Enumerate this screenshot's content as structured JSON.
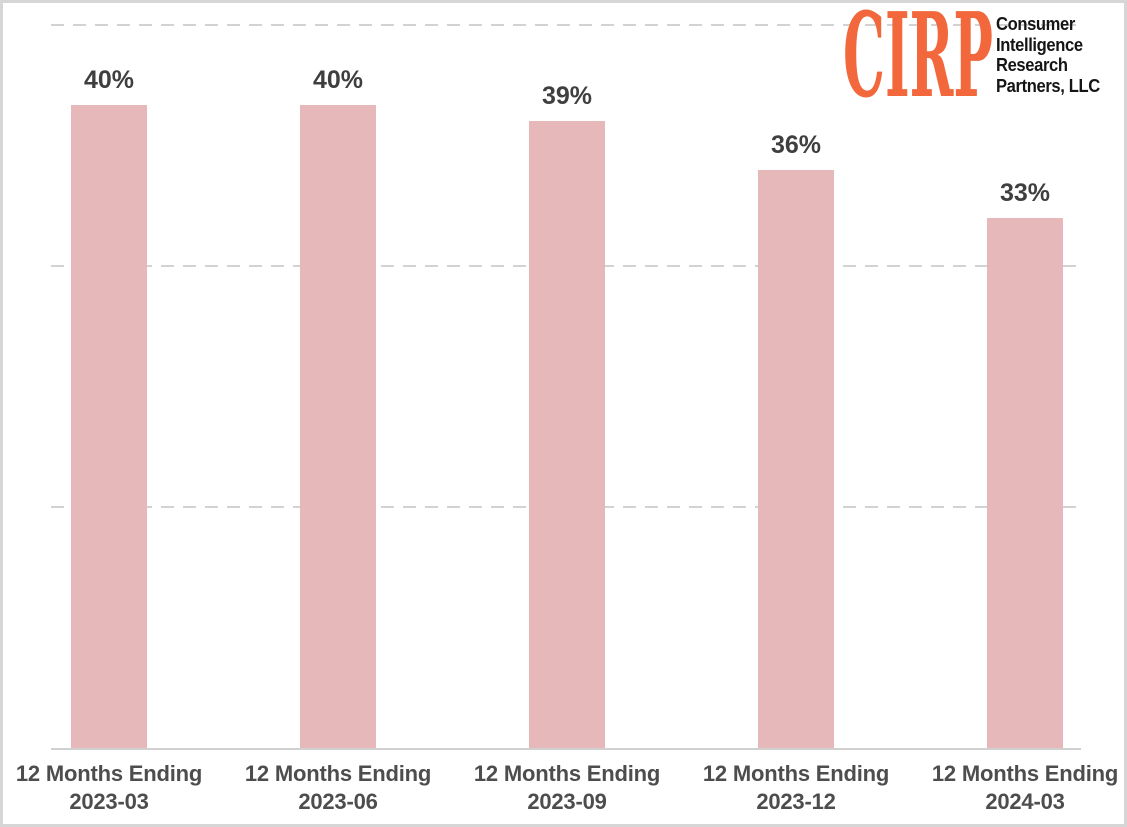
{
  "chart_data": {
    "type": "bar",
    "title": "",
    "xlabel": "",
    "ylabel": "",
    "categories": [
      "12 Months Ending 2023-03",
      "12 Months Ending 2023-06",
      "12 Months Ending 2023-09",
      "12 Months Ending 2023-12",
      "12 Months Ending 2024-03"
    ],
    "category_lines": [
      [
        "12 Months Ending",
        "2023-03"
      ],
      [
        "12 Months Ending",
        "2023-06"
      ],
      [
        "12 Months Ending",
        "2023-09"
      ],
      [
        "12 Months Ending",
        "2023-12"
      ],
      [
        "12 Months Ending",
        "2024-03"
      ]
    ],
    "values": [
      40,
      40,
      39,
      36,
      33
    ],
    "data_labels": [
      "40%",
      "40%",
      "39%",
      "36%",
      "33%"
    ],
    "ylim": [
      0,
      45
    ],
    "y_axis_labels_visible": false,
    "legend": "none",
    "gridlines": {
      "values": [
        15,
        30,
        45
      ],
      "style": "dashed",
      "color": "#d2d2d2"
    },
    "bar_color": "#e7b8b9",
    "value_label_color": "#3f3f3f",
    "category_label_color": "#4d4d4d",
    "axis_line_color": "#d0d0d0"
  },
  "logo": {
    "acronym": "CIRP",
    "acronym_color": "#f2683c",
    "name_lines": [
      "Consumer",
      "Intelligence",
      "Research",
      "Partners, LLC"
    ],
    "name_color": "#151515"
  },
  "frame": {
    "border_color": "#d6d6d6",
    "background": "#ffffff"
  }
}
